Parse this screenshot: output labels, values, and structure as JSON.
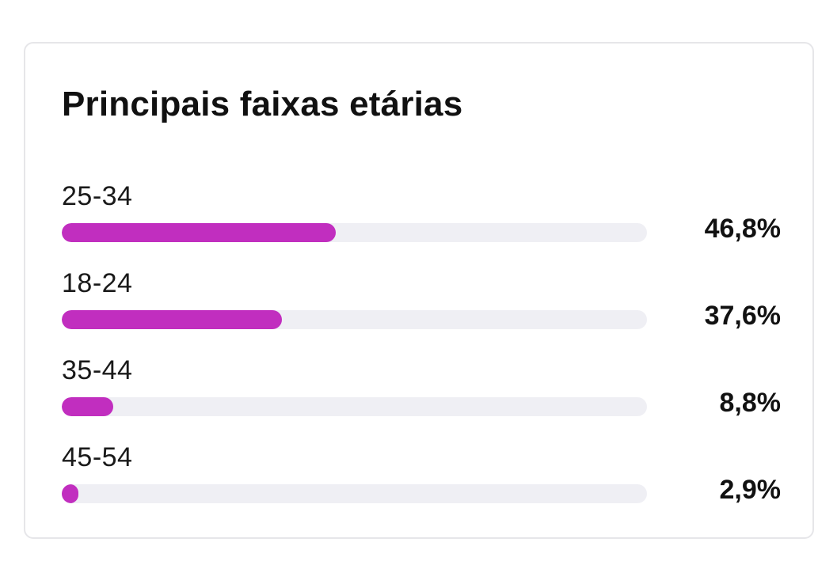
{
  "card": {
    "title": "Principais faixas etárias"
  },
  "chart_data": {
    "type": "bar",
    "orientation": "horizontal",
    "title": "Principais faixas etárias",
    "categories": [
      "25-34",
      "18-24",
      "35-44",
      "45-54"
    ],
    "values": [
      46.8,
      37.6,
      8.8,
      2.9
    ],
    "value_labels": [
      "46,8%",
      "37,6%",
      "8,8%",
      "2,9%"
    ],
    "xlim": [
      0,
      100
    ],
    "unit": "%",
    "grid": false,
    "legend": "none",
    "colors": {
      "bar": "#c12ebf",
      "track": "#efeff4"
    }
  }
}
